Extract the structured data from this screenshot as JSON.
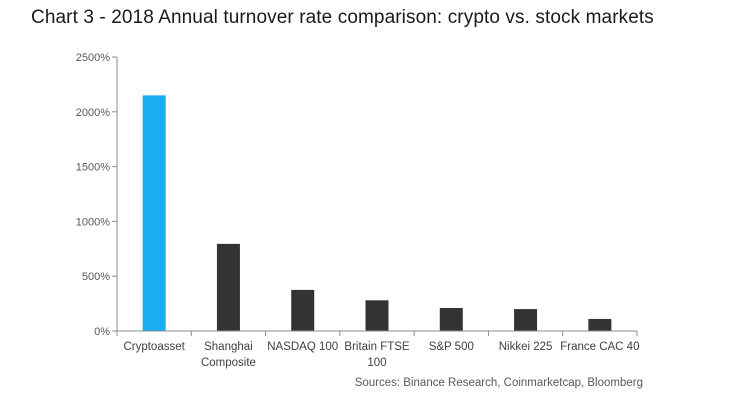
{
  "title": "Chart 3 - 2018 Annual turnover rate comparison: crypto vs. stock markets",
  "sources": "Sources: Binance Research, Coinmarketcap, Bloomberg",
  "colors": {
    "highlight": "#1aadf0",
    "bar": "#333333",
    "axis": "#8c8c8c",
    "tick_text": "#595959"
  },
  "chart_data": {
    "type": "bar",
    "title": "Chart 3 - 2018 Annual turnover rate comparison: crypto vs. stock markets",
    "xlabel": "",
    "ylabel": "",
    "ylim": [
      0,
      2500
    ],
    "yticks": [
      "0%",
      "500%",
      "1000%",
      "1500%",
      "2000%",
      "2500%"
    ],
    "grid": false,
    "legend": "none",
    "categories": [
      [
        "Cryptoasset"
      ],
      [
        "Shanghai",
        "Composite"
      ],
      [
        "NASDAQ 100"
      ],
      [
        "Britain  FTSE",
        "100"
      ],
      [
        "S&P 500"
      ],
      [
        "Nikkei 225"
      ],
      [
        "France CAC 40"
      ]
    ],
    "values": [
      2150,
      795,
      375,
      280,
      210,
      200,
      110
    ],
    "highlight_index": 0
  }
}
